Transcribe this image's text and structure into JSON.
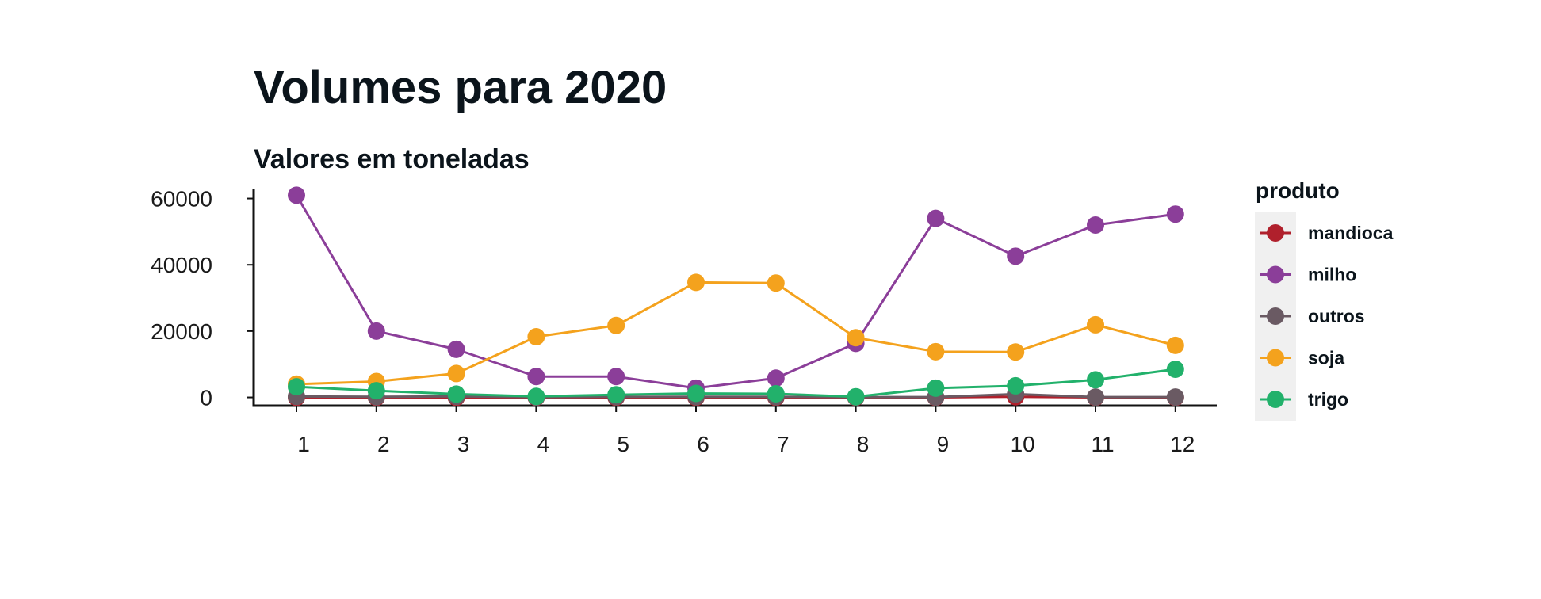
{
  "chart_data": {
    "type": "line",
    "title": "Volumes para 2020",
    "subtitle": "Valores em toneladas",
    "xlabel": "",
    "ylabel": "",
    "x": [
      1,
      2,
      3,
      4,
      5,
      6,
      7,
      8,
      9,
      10,
      11,
      12
    ],
    "ylim": [
      -2500,
      63000
    ],
    "yticks": [
      0,
      20000,
      40000,
      60000
    ],
    "grid": false,
    "legend": {
      "title": "produto",
      "position": "right",
      "background": "#f0f0f0"
    },
    "series": [
      {
        "name": "mandioca",
        "color": "#b0202c",
        "values": [
          0,
          0,
          0,
          0,
          0,
          0,
          0,
          0,
          0,
          200,
          0,
          0
        ]
      },
      {
        "name": "milho",
        "color": "#8b3e99",
        "values": [
          61000,
          20000,
          14500,
          6300,
          6300,
          2800,
          5800,
          16300,
          54000,
          42600,
          52000,
          55300
        ]
      },
      {
        "name": "outros",
        "color": "#6a5a63",
        "values": [
          300,
          200,
          300,
          100,
          200,
          200,
          200,
          100,
          100,
          1000,
          100,
          100
        ]
      },
      {
        "name": "soja",
        "color": "#f4a21d",
        "values": [
          4000,
          4800,
          7200,
          18300,
          21700,
          34700,
          34500,
          18000,
          13800,
          13700,
          21900,
          15700
        ]
      },
      {
        "name": "trigo",
        "color": "#22b16b",
        "values": [
          3200,
          2000,
          1000,
          300,
          800,
          1200,
          1100,
          200,
          2800,
          3500,
          5300,
          8500
        ]
      }
    ]
  }
}
